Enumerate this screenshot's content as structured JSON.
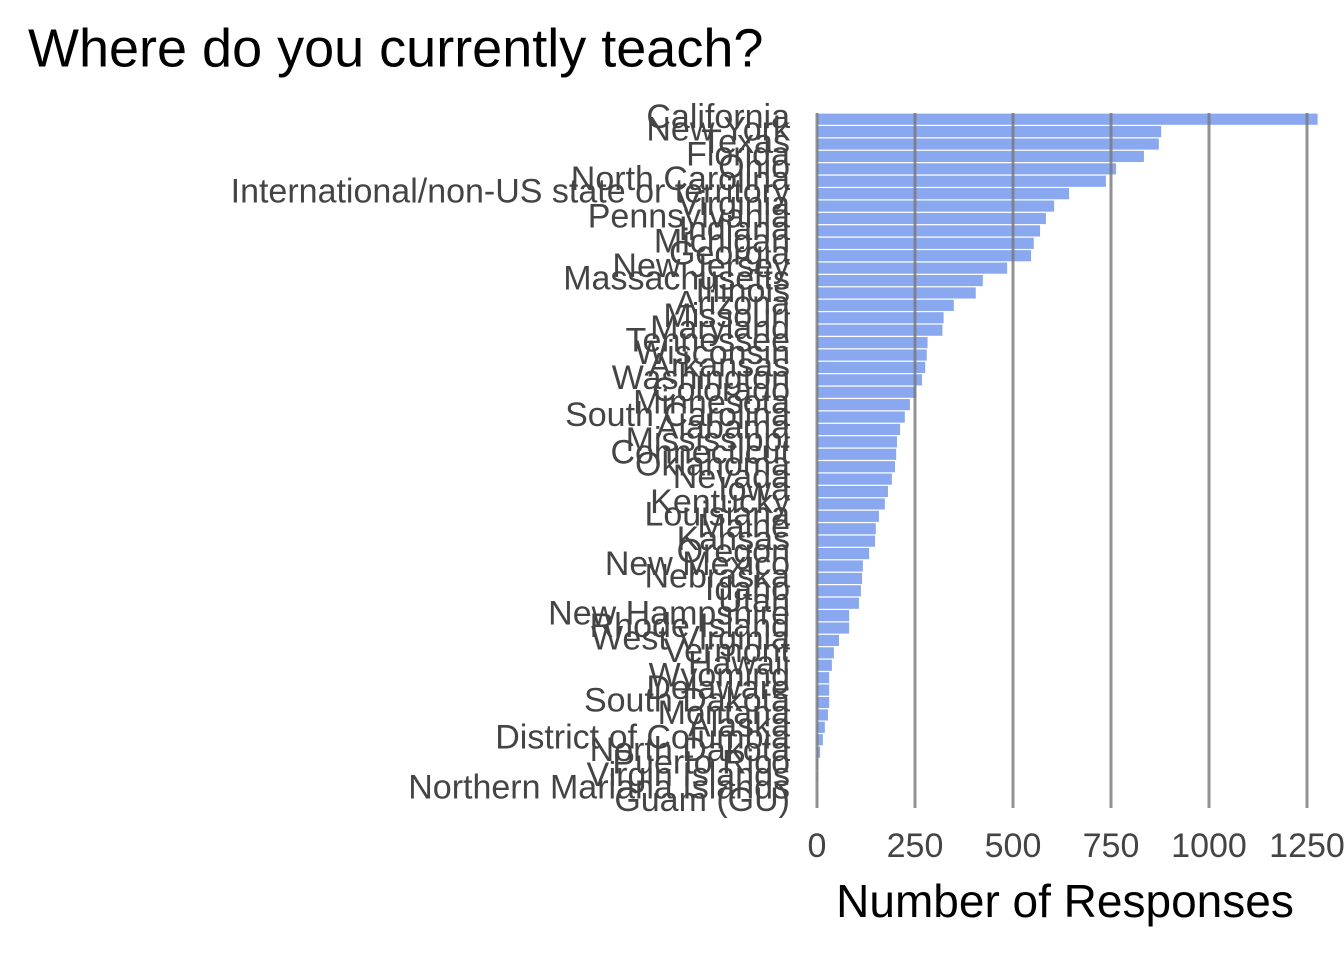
{
  "chart_data": {
    "type": "barh",
    "title": "Where do you currently teach?",
    "x_label": "Number of Responses",
    "color": "#8aa8f0",
    "grid": true,
    "categories": [
      "California",
      "New York",
      "Texas",
      "Florida",
      "Ohio",
      "North Carolina",
      "International/non-US state or territory",
      "Virginia",
      "Pennsylvania",
      "Indiana",
      "Michigan",
      "Georgia",
      "New Jersey",
      "Massachusetts",
      "Illinois",
      "Arizona",
      "Missouri",
      "Maryland",
      "Tennessee",
      "Wisconsin",
      "Arkansas",
      "Washington",
      "Colorado",
      "Minnesota",
      "South Carolina",
      "Alabama",
      "Mississippi",
      "Connecticut",
      "Oklahoma",
      "Nevada",
      "Iowa",
      "Kentucky",
      "Louisiana",
      "Maine",
      "Kansas",
      "Oregon",
      "New Mexico",
      "Nebraska",
      "Idaho",
      "Utah",
      "New Hampshire",
      "Rhode Island",
      "West Virginia",
      "Vermont",
      "Hawaii",
      "Wyoming",
      "Delaware",
      "South Dakota",
      "Montana",
      "Alaska",
      "District of Columbia",
      "North Dakota",
      "Puerto Rico",
      "Virgin Islands",
      "Northern Mariana Islands",
      "Guam (GU)"
    ],
    "values": [
      1277,
      878,
      872,
      834,
      763,
      737,
      643,
      605,
      584,
      569,
      553,
      546,
      485,
      423,
      405,
      349,
      323,
      320,
      282,
      280,
      276,
      268,
      253,
      237,
      224,
      212,
      204,
      202,
      199,
      191,
      181,
      173,
      158,
      150,
      148,
      133,
      117,
      115,
      112,
      107,
      82,
      82,
      56,
      43,
      38,
      31,
      31,
      31,
      28,
      20,
      15,
      8,
      3,
      2,
      1,
      1
    ],
    "xlim": [
      0,
      1300
    ],
    "xticks": [
      0,
      250,
      500,
      750,
      1000,
      1250
    ]
  }
}
